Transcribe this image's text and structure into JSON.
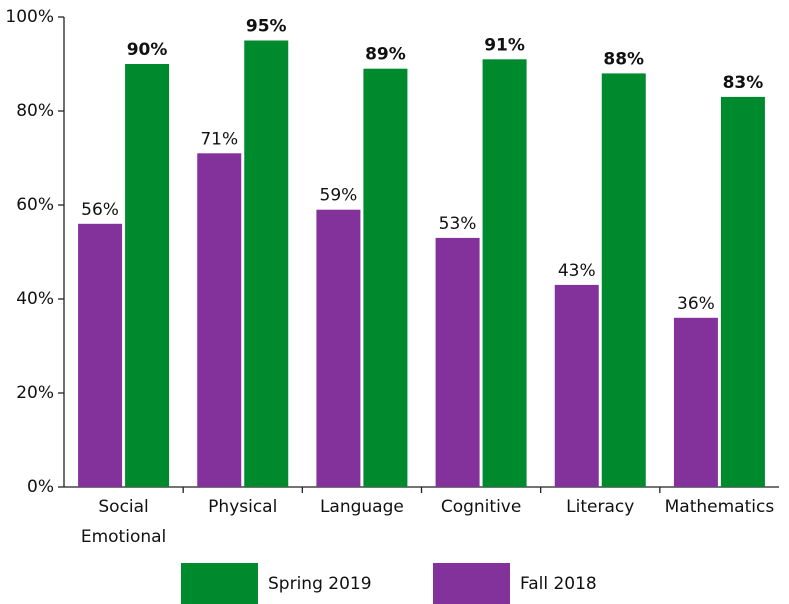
{
  "chart_data": {
    "type": "bar",
    "categories": [
      "Social Emotional",
      "Physical",
      "Language",
      "Cognitive",
      "Literacy",
      "Mathematics"
    ],
    "series": [
      {
        "name": "Fall 2018",
        "color": "#84329b",
        "values": [
          56,
          71,
          59,
          53,
          43,
          36
        ],
        "value_labels": [
          "56%",
          "71%",
          "59%",
          "53%",
          "43%",
          "36%"
        ]
      },
      {
        "name": "Spring 2019",
        "color": "#008a2e",
        "values": [
          90,
          95,
          89,
          91,
          88,
          83
        ],
        "value_labels": [
          "90%",
          "95%",
          "89%",
          "91%",
          "88%",
          "83%"
        ]
      }
    ],
    "ylim": [
      0,
      100
    ],
    "yticks": [
      {
        "value": 0,
        "label": "0%"
      },
      {
        "value": 20,
        "label": "20%"
      },
      {
        "value": 40,
        "label": "40%"
      },
      {
        "value": 60,
        "label": "60%"
      },
      {
        "value": 80,
        "label": "80%"
      },
      {
        "value": 100,
        "label": "100%"
      }
    ]
  }
}
